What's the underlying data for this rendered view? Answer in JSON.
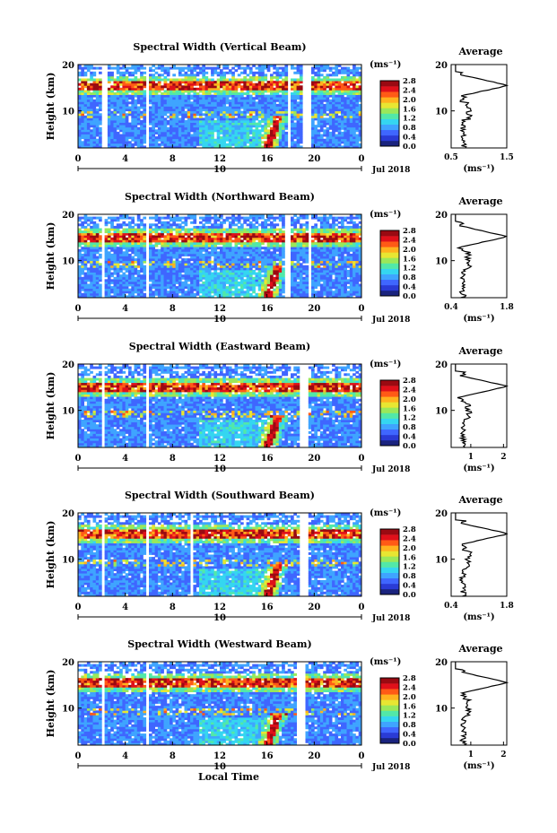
{
  "colors": {
    "colormap": [
      "#1a237e",
      "#2a3bd6",
      "#3f66ff",
      "#3fa4ff",
      "#35d6f0",
      "#52e8a8",
      "#9ae85a",
      "#e8e632",
      "#ffb21e",
      "#ff5a16",
      "#e0101a",
      "#9a0a12"
    ],
    "outline": "#000000",
    "bg": "#ffffff"
  },
  "chart_data": [
    {
      "type": "heatmap",
      "id": "vertical",
      "title": "Spectral Width (Vertical Beam)",
      "ylabel": "Height (km)",
      "x_ticks": [
        "0",
        "4",
        "8",
        "12",
        "16",
        "20",
        "0"
      ],
      "xlim": [
        0,
        24
      ],
      "ylim": [
        2,
        20
      ],
      "y_ticks": [
        "20",
        "10"
      ],
      "date_label": "10",
      "month_label": "Jul 2018",
      "colorbar": {
        "unit": "(ms⁻¹)",
        "ticks": [
          "2.8",
          "2.4",
          "2.0",
          "1.6",
          "1.2",
          "0.8",
          "0.4",
          "0.0"
        ],
        "range": [
          0,
          2.8
        ]
      },
      "data_gaps_hours": [
        [
          2.0,
          2.6
        ],
        [
          5.8,
          6.1
        ],
        [
          17.7,
          18.0
        ],
        [
          19.0,
          19.7
        ],
        [
          21.9,
          22.1
        ]
      ],
      "enhanced_layer_km": 15.5,
      "average": {
        "title": "Average",
        "x_ticks": [
          "0.5",
          "1.5"
        ],
        "xlim": [
          0.5,
          1.5
        ],
        "xlabel": "(ms⁻¹)",
        "y_ticks": [
          "20",
          "10"
        ],
        "peak": {
          "height_km": 15.5,
          "value": 1.48
        }
      }
    },
    {
      "type": "heatmap",
      "id": "northward",
      "title": "Spectral Width (Northward Beam)",
      "ylabel": "Height (km)",
      "x_ticks": [
        "0",
        "4",
        "8",
        "12",
        "16",
        "20",
        "0"
      ],
      "xlim": [
        0,
        24
      ],
      "ylim": [
        2,
        20
      ],
      "y_ticks": [
        "20",
        "10"
      ],
      "date_label": "10",
      "month_label": "Jul 2018",
      "colorbar": {
        "unit": "(ms⁻¹)",
        "ticks": [
          "2.8",
          "2.4",
          "2.0",
          "1.6",
          "1.2",
          "0.8",
          "0.4",
          "0.0"
        ],
        "range": [
          0,
          2.8
        ]
      },
      "data_gaps_hours": [
        [
          2.0,
          2.3
        ],
        [
          5.8,
          6.1
        ],
        [
          17.6,
          18.0
        ],
        [
          19.4,
          19.8
        ],
        [
          21.9,
          22.1
        ]
      ],
      "enhanced_layer_km": 15.0,
      "average": {
        "title": "Average",
        "x_ticks": [
          "0.4",
          "1.8"
        ],
        "xlim": [
          0.4,
          1.8
        ],
        "xlabel": "(ms⁻¹)",
        "y_ticks": [
          "20",
          "10"
        ],
        "peak": {
          "height_km": 15.2,
          "value": 1.75
        }
      }
    },
    {
      "type": "heatmap",
      "id": "eastward",
      "title": "Spectral Width (Eastward Beam)",
      "ylabel": "Height (km)",
      "x_ticks": [
        "0",
        "4",
        "8",
        "12",
        "16",
        "20",
        "0"
      ],
      "xlim": [
        0,
        24
      ],
      "ylim": [
        2,
        20
      ],
      "y_ticks": [
        "20",
        "10"
      ],
      "date_label": "10",
      "month_label": "Jul 2018",
      "colorbar": {
        "unit": "(ms⁻¹)",
        "ticks": [
          "2.8",
          "2.4",
          "2.0",
          "1.6",
          "1.2",
          "0.8",
          "0.4",
          "0.0"
        ],
        "range": [
          0,
          2.8
        ]
      },
      "data_gaps_hours": [
        [
          2.0,
          2.3
        ],
        [
          5.8,
          6.1
        ],
        [
          18.8,
          19.5
        ],
        [
          21.9,
          22.1
        ]
      ],
      "enhanced_layer_km": 15.0,
      "average": {
        "title": "Average",
        "x_ticks": [
          "1",
          "2"
        ],
        "xlim": [
          0.4,
          2.1
        ],
        "xlabel": "(ms⁻¹)",
        "y_ticks": [
          "20",
          "10"
        ],
        "peak": {
          "height_km": 15.2,
          "value": 2.05
        }
      }
    },
    {
      "type": "heatmap",
      "id": "southward",
      "title": "Spectral Width (Southward Beam)",
      "ylabel": "Height (km)",
      "x_ticks": [
        "0",
        "4",
        "8",
        "12",
        "16",
        "20",
        "0"
      ],
      "xlim": [
        0,
        24
      ],
      "ylim": [
        2,
        20
      ],
      "y_ticks": [
        "20",
        "10"
      ],
      "date_label": "10",
      "month_label": "Jul 2018",
      "colorbar": {
        "unit": "(ms⁻¹)",
        "ticks": [
          "2.8",
          "2.4",
          "2.0",
          "1.6",
          "1.2",
          "0.8",
          "0.4",
          "0.0"
        ],
        "range": [
          0,
          2.8
        ]
      },
      "data_gaps_hours": [
        [
          2.0,
          2.3
        ],
        [
          5.8,
          6.1
        ],
        [
          9.5,
          9.7
        ],
        [
          18.8,
          19.5
        ],
        [
          21.9,
          22.1
        ]
      ],
      "enhanced_layer_km": 15.5,
      "average": {
        "title": "Average",
        "x_ticks": [
          "0.4",
          "1.8"
        ],
        "xlim": [
          0.4,
          1.8
        ],
        "xlabel": "(ms⁻¹)",
        "y_ticks": [
          "20",
          "10"
        ],
        "peak": {
          "height_km": 15.5,
          "value": 1.78
        }
      }
    },
    {
      "type": "heatmap",
      "id": "westward",
      "title": "Spectral Width (Westward Beam)",
      "ylabel": "Height (km)",
      "x_ticks": [
        "0",
        "4",
        "8",
        "12",
        "16",
        "20",
        "0"
      ],
      "xlim": [
        0,
        24
      ],
      "ylim": [
        2,
        20
      ],
      "y_ticks": [
        "20",
        "10"
      ],
      "date_label": "10",
      "month_label": "Jul 2018",
      "xlabel": "Local Time",
      "colorbar": {
        "unit": "(ms⁻¹)",
        "ticks": [
          "2.8",
          "2.4",
          "2.0",
          "1.6",
          "1.2",
          "0.8",
          "0.4",
          "0.0"
        ],
        "range": [
          0,
          2.8
        ]
      },
      "data_gaps_hours": [
        [
          2.0,
          2.3
        ],
        [
          5.8,
          6.1
        ],
        [
          18.6,
          19.2
        ],
        [
          21.9,
          22.1
        ]
      ],
      "enhanced_layer_km": 15.5,
      "average": {
        "title": "Average",
        "x_ticks": [
          "1",
          "2"
        ],
        "xlim": [
          0.4,
          2.1
        ],
        "xlabel": "(ms⁻¹)",
        "y_ticks": [
          "20",
          "10"
        ],
        "peak": {
          "height_km": 15.5,
          "value": 2.05
        }
      }
    }
  ]
}
